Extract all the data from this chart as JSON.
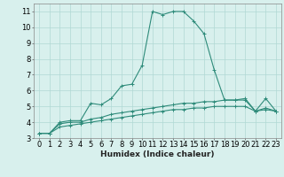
{
  "x": [
    0,
    1,
    2,
    3,
    4,
    5,
    6,
    7,
    8,
    9,
    10,
    11,
    12,
    13,
    14,
    15,
    16,
    17,
    18,
    19,
    20,
    21,
    22,
    23
  ],
  "line1": [
    3.3,
    3.3,
    4.0,
    4.1,
    4.1,
    5.2,
    5.1,
    5.5,
    6.3,
    6.4,
    7.6,
    11.0,
    10.8,
    11.0,
    11.0,
    10.4,
    9.6,
    7.3,
    5.4,
    5.4,
    5.5,
    4.7,
    5.5,
    4.7
  ],
  "line2": [
    3.3,
    3.3,
    3.9,
    4.0,
    4.0,
    4.2,
    4.3,
    4.5,
    4.6,
    4.7,
    4.8,
    4.9,
    5.0,
    5.1,
    5.2,
    5.2,
    5.3,
    5.3,
    5.4,
    5.4,
    5.4,
    4.7,
    4.9,
    4.7
  ],
  "line3": [
    3.3,
    3.3,
    3.7,
    3.8,
    3.9,
    4.0,
    4.1,
    4.2,
    4.3,
    4.4,
    4.5,
    4.6,
    4.7,
    4.8,
    4.8,
    4.9,
    4.9,
    5.0,
    5.0,
    5.0,
    5.0,
    4.7,
    4.8,
    4.7
  ],
  "line_color": "#2e8b7a",
  "bg_color": "#d8f0ed",
  "grid_color": "#b0d8d4",
  "xlabel": "Humidex (Indice chaleur)",
  "ylim": [
    3,
    11.5
  ],
  "xlim": [
    -0.5,
    23.5
  ],
  "yticks": [
    3,
    4,
    5,
    6,
    7,
    8,
    9,
    10,
    11
  ],
  "xticks": [
    0,
    1,
    2,
    3,
    4,
    5,
    6,
    7,
    8,
    9,
    10,
    11,
    12,
    13,
    14,
    15,
    16,
    17,
    18,
    19,
    20,
    21,
    22,
    23
  ],
  "xlabel_fontsize": 6.5,
  "tick_fontsize": 6.0,
  "fig_width": 3.2,
  "fig_height": 2.0,
  "dpi": 100
}
